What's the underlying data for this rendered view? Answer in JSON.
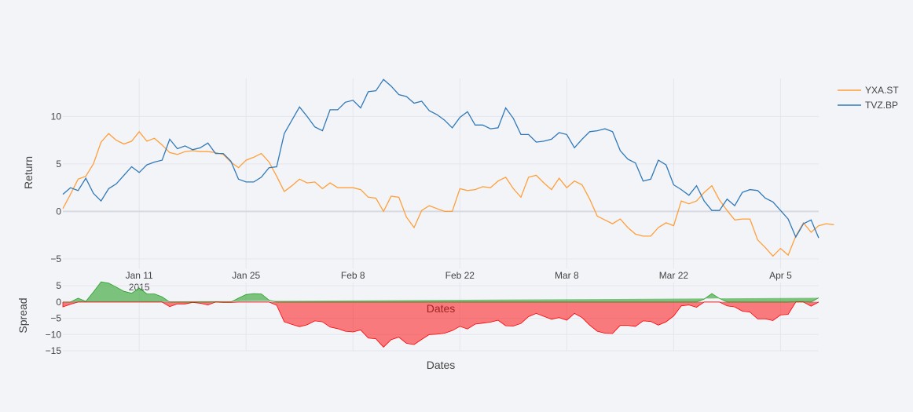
{
  "chart_data": [
    {
      "type": "line",
      "panel": "top",
      "title": "",
      "xlabel": "",
      "ylabel": "Return",
      "x_start_date": "2015-01-01",
      "x_step": "1 point per day",
      "ylim": [
        -6,
        14
      ],
      "y_ticks": [
        10,
        5,
        0,
        -5
      ],
      "y_tick_labels": [
        "10",
        "5",
        "0",
        "−5"
      ],
      "grid": true,
      "legend_position": "top-right",
      "series": [
        {
          "name": "YXA.ST",
          "color": "#ff9f3a",
          "values": [
            0.3,
            1.8,
            3.4,
            3.7,
            5.0,
            7.3,
            8.2,
            7.5,
            7.1,
            7.4,
            8.4,
            7.4,
            7.7,
            7.0,
            6.2,
            6.0,
            6.3,
            6.4,
            6.3,
            6.3,
            6.2,
            6.0,
            5.2,
            4.6,
            5.4,
            5.7,
            6.1,
            5.2,
            3.7,
            2.1,
            2.7,
            3.4,
            3.0,
            3.1,
            2.4,
            3.0,
            2.5,
            2.5,
            2.5,
            2.3,
            1.5,
            1.4,
            0.0,
            1.6,
            1.5,
            -0.6,
            -1.7,
            0.1,
            0.6,
            0.3,
            0.0,
            0.0,
            2.4,
            2.2,
            2.3,
            2.6,
            2.5,
            3.2,
            3.6,
            2.4,
            1.5,
            3.6,
            3.8,
            3.0,
            2.3,
            3.5,
            2.5,
            3.2,
            2.8,
            1.3,
            -0.5,
            -0.9,
            -1.3,
            -0.8,
            -1.7,
            -2.4,
            -2.6,
            -2.6,
            -1.7,
            -1.2,
            -1.5,
            1.1,
            0.8,
            1.1,
            2.0,
            2.7,
            1.2,
            0.1,
            -0.9,
            -0.8,
            -0.8,
            -3.0,
            -3.8,
            -4.7,
            -3.9,
            -4.6,
            -2.6,
            -1.2,
            -2.2,
            -1.5,
            -1.3,
            -1.4
          ]
        },
        {
          "name": "TVZ.BP",
          "color": "#3079b8",
          "values": [
            1.8,
            2.5,
            2.2,
            3.5,
            1.9,
            1.1,
            2.4,
            2.9,
            3.8,
            4.7,
            4.1,
            4.9,
            5.2,
            5.4,
            7.6,
            6.6,
            6.9,
            6.5,
            6.7,
            7.2,
            6.1,
            6.1,
            5.3,
            3.4,
            3.1,
            3.1,
            3.6,
            4.6,
            4.7,
            8.2,
            9.6,
            11.0,
            10.0,
            8.9,
            8.5,
            10.7,
            10.7,
            11.5,
            11.7,
            10.9,
            12.6,
            12.7,
            13.9,
            13.2,
            12.3,
            12.1,
            11.4,
            11.6,
            10.6,
            10.2,
            9.6,
            8.8,
            9.9,
            10.5,
            9.1,
            9.1,
            8.7,
            8.8,
            10.9,
            9.8,
            8.1,
            8.1,
            7.3,
            7.4,
            7.6,
            8.3,
            8.1,
            6.7,
            7.6,
            8.4,
            8.5,
            8.7,
            8.4,
            6.4,
            5.5,
            5.1,
            3.2,
            3.4,
            5.4,
            4.9,
            2.8,
            2.3,
            1.7,
            2.7,
            1.1,
            0.1,
            0.1,
            1.3,
            0.6,
            2.0,
            2.3,
            2.2,
            1.4,
            1.0,
            0.1,
            -0.8,
            -2.7,
            -1.3,
            -0.9,
            -2.8
          ]
        }
      ]
    },
    {
      "type": "area",
      "panel": "bottom",
      "title": "",
      "xlabel": "Dates",
      "ylabel": "Spread",
      "ylim": [
        -15,
        6
      ],
      "y_ticks": [
        5,
        0,
        -5,
        -10,
        -15
      ],
      "y_tick_labels": [
        "5",
        "0",
        "−5",
        "−10",
        "−15"
      ],
      "grid": true,
      "positive_color": "#2ca02c",
      "negative_color": "#ff0000",
      "description_of_values": "YXA.ST minus TVZ.BP"
    }
  ],
  "x_axis": {
    "tick_labels": [
      "Jan 11",
      "Jan 25",
      "Feb 8",
      "Feb 22",
      "Mar 8",
      "Mar 22",
      "Apr 5"
    ],
    "tick_days": [
      10,
      24,
      38,
      52,
      66,
      80,
      94
    ],
    "year_label": "2015",
    "mid_title": "Dates"
  }
}
